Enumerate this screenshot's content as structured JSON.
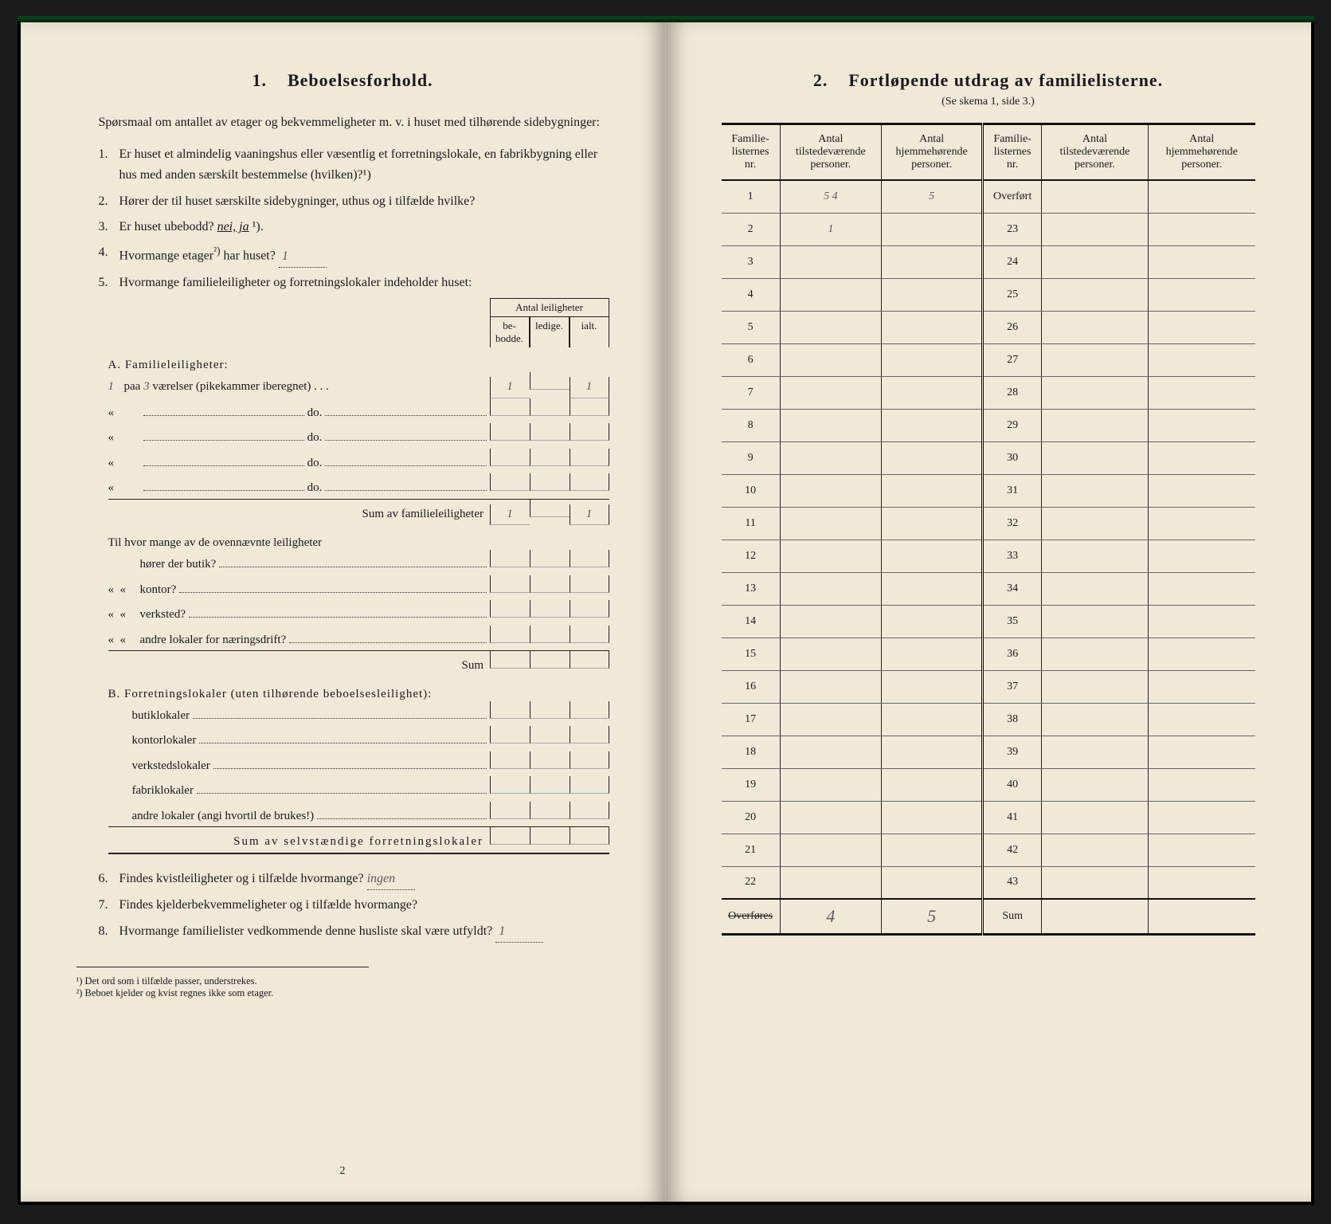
{
  "left": {
    "section_number": "1.",
    "section_title": "Beboelsesforhold.",
    "intro": "Spørsmaal om antallet av etager og bekvemmeligheter m. v. i huset med tilhørende sidebygninger:",
    "q1_num": "1.",
    "q1": "Er huset et almindelig vaaningshus eller væsentlig et forretningslokale, en fabrikbygning eller hus med anden særskilt bestemmelse (hvilken)?¹)",
    "q2_num": "2.",
    "q2": "Hører der til huset særskilte sidebygninger, uthus og i tilfælde hvilke?",
    "q3_num": "3.",
    "q3_pre": "Er huset ubebodd? ",
    "q3_italic": "nei, ja",
    "q3_sup": "¹).",
    "q4_num": "4.",
    "q4_pre": "Hvormange etager",
    "q4_sup": "²)",
    "q4_post": " har huset?",
    "q4_hand": "1",
    "q5_num": "5.",
    "q5": "Hvormange familieleiligheter og forretningslokaler indeholder huset:",
    "mini_header_span": "Antal leiligheter",
    "mini_h1": "be-bodde.",
    "mini_h2": "ledige.",
    "mini_h3": "ialt.",
    "A_title": "A. Familieleiligheter:",
    "A_prefix_hand": "1",
    "A_paa": "paa",
    "A_vaer_hand": "3",
    "A_line1_rest": "værelser (pikekammer iberegnet) . . .",
    "A_do": "do.",
    "A_bebodde_hand": "1",
    "A_ialt_hand": "1",
    "A_sum": "Sum av familieleiligheter",
    "A_sum_bebodde": "1",
    "A_sum_ialt": "1",
    "A_sub_intro": "Til hvor mange av de ovennævnte leiligheter",
    "A_sub1": "hører der butik?",
    "A_sub2": "kontor?",
    "A_sub3": "verksted?",
    "A_sub4": "andre lokaler for næringsdrift?",
    "A_sub_sum": "Sum",
    "B_title": "B. Forretningslokaler (uten tilhørende beboelsesleilighet):",
    "B_1": "butiklokaler",
    "B_2": "kontorlokaler",
    "B_3": "verkstedslokaler",
    "B_4": "fabriklokaler",
    "B_5": "andre lokaler (angi hvortil de brukes!)",
    "B_sum": "Sum av selvstændige forretningslokaler",
    "q6_num": "6.",
    "q6": "Findes kvistleiligheter og i tilfælde hvormange?",
    "q6_hand": "ingen",
    "q7_num": "7.",
    "q7": "Findes kjelderbekvemmeligheter og i tilfælde hvormange?",
    "q8_num": "8.",
    "q8": "Hvormange familielister vedkommende denne husliste skal være utfyldt?",
    "q8_hand": "1",
    "fn1_num": "¹)",
    "fn1": "Det ord som i tilfælde passer, understrekes.",
    "fn2_num": "²)",
    "fn2": "Beboet kjelder og kvist regnes ikke som etager.",
    "page_num": "2"
  },
  "right": {
    "section_number": "2.",
    "section_title": "Fortløpende utdrag av familielisterne.",
    "subtitle": "(Se skema 1, side 3.)",
    "h1": "Familie-listernes nr.",
    "h2": "Antal tilstedeværende personer.",
    "h3": "Antal hjemmehørende personer.",
    "row1_nr": "1",
    "row1_til": "5 4",
    "row1_hjem": "5",
    "row2_nr": "2",
    "row2_til": "1",
    "overfort": "Overført",
    "overfores": "Overføres",
    "sum": "Sum",
    "ov_til": "4",
    "ov_hjem": "5",
    "left_nrs": [
      "1",
      "2",
      "3",
      "4",
      "5",
      "6",
      "7",
      "8",
      "9",
      "10",
      "11",
      "12",
      "13",
      "14",
      "15",
      "16",
      "17",
      "18",
      "19",
      "20",
      "21",
      "22"
    ],
    "right_nrs": [
      "23",
      "24",
      "25",
      "26",
      "27",
      "28",
      "29",
      "30",
      "31",
      "32",
      "33",
      "34",
      "35",
      "36",
      "37",
      "38",
      "39",
      "40",
      "41",
      "42",
      "43"
    ]
  }
}
